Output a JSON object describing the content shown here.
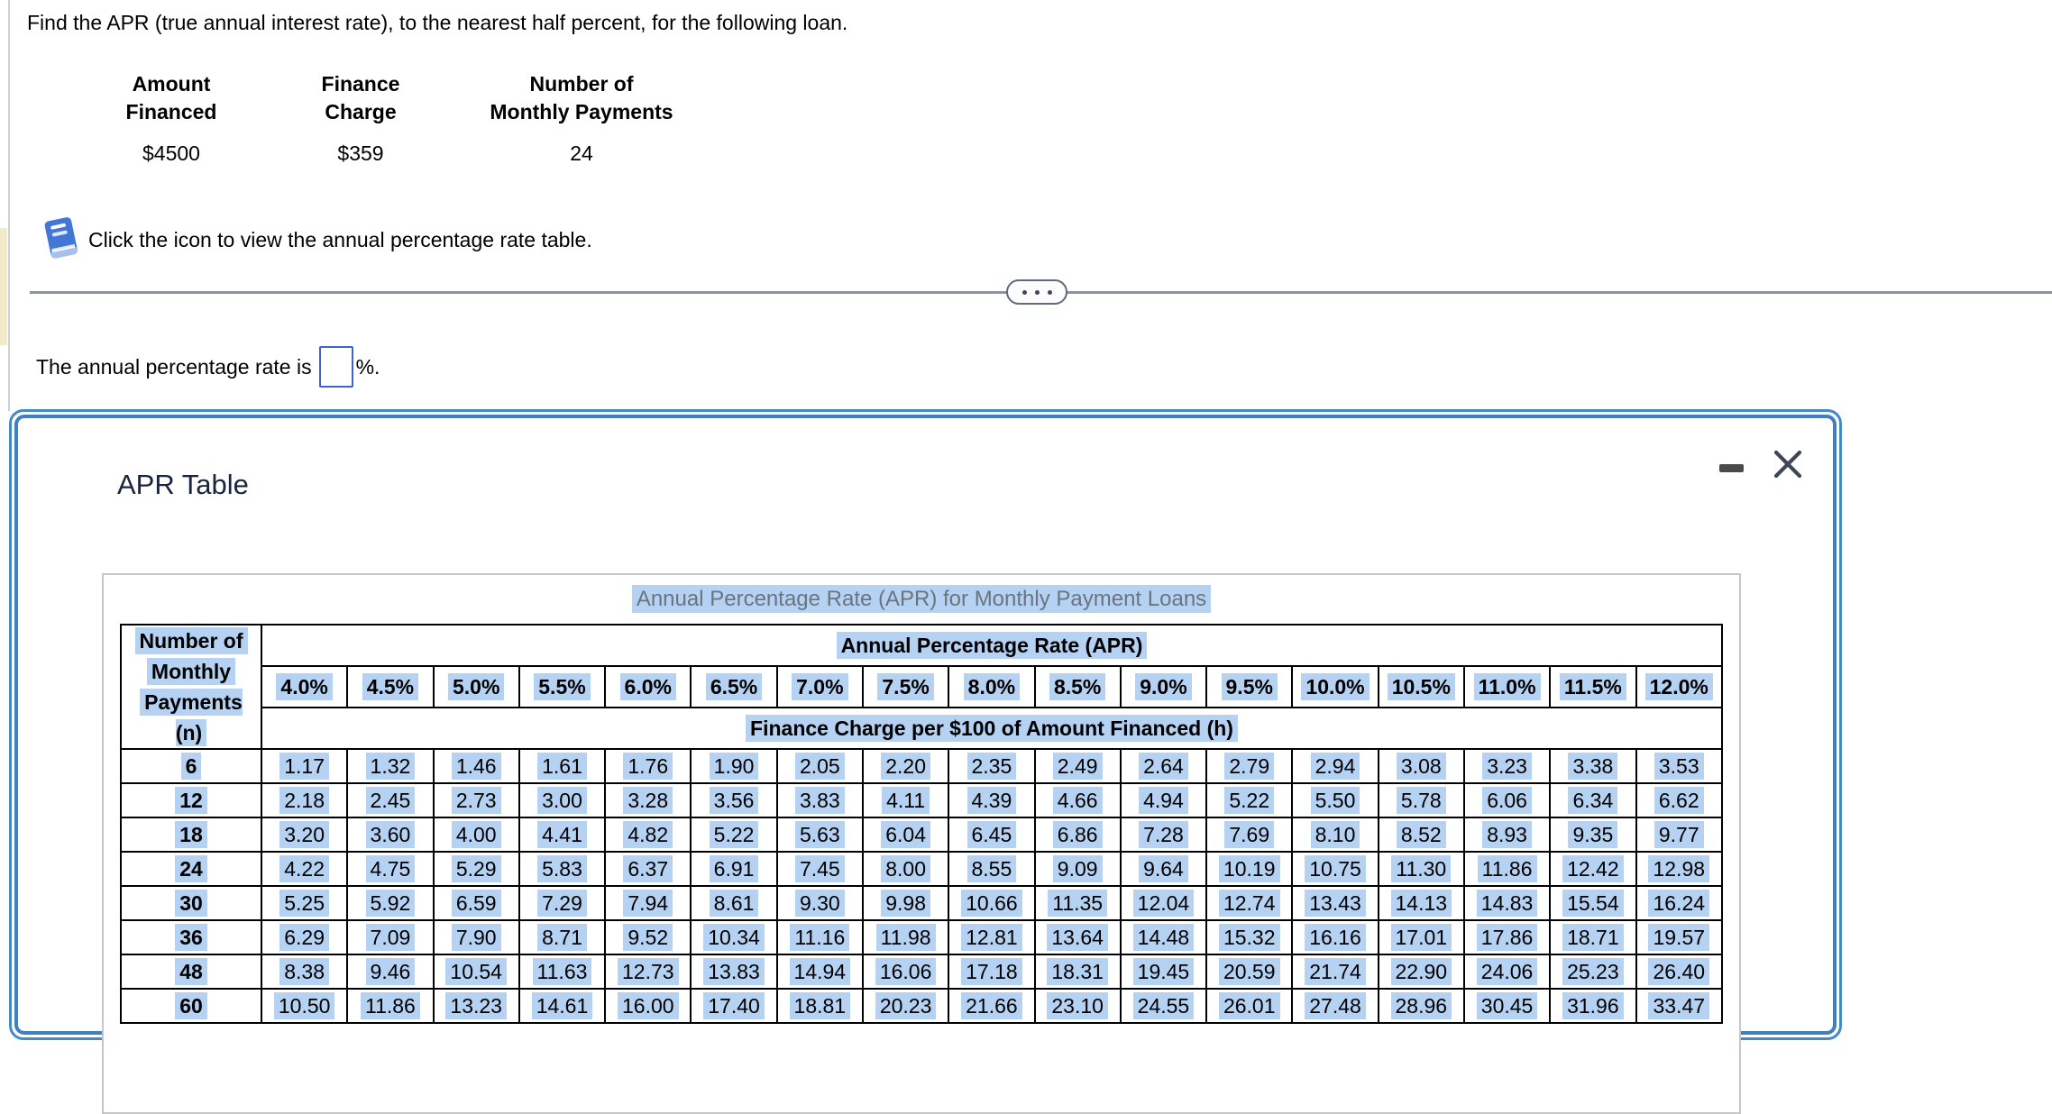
{
  "page": {
    "question_prompt": "Find the APR (true annual interest rate), to the nearest half percent, for the following loan.",
    "loan_table": {
      "columns": [
        {
          "header": [
            "Amount",
            "Financed"
          ],
          "value": "$4500"
        },
        {
          "header": [
            "Finance",
            "Charge"
          ],
          "value": "$359"
        },
        {
          "header": [
            "Number of",
            "Monthly Payments"
          ],
          "value": "24"
        }
      ]
    },
    "icon_hint": "Click the icon to view the annual percentage rate table.",
    "answer_line": {
      "prefix": "The annual percentage rate is",
      "input_value": "",
      "suffix": "%."
    }
  },
  "icons": {
    "view_table": "book-icon",
    "divider_expand": "ellipsis-icon",
    "minimize": "minus-icon",
    "close": "x-icon"
  },
  "colors": {
    "highlight_blue": "#b5d2f3",
    "modal_border_blue": "#4285c6",
    "book_icon_blue": "#4277d8",
    "input_border_blue": "#3d63c6",
    "divider_gray": "#8a93a4",
    "caption_text_gray": "#6a7480",
    "title_navy": "#182540"
  },
  "modal": {
    "title": "APR Table"
  },
  "apr_table": {
    "caption": "Annual Percentage Rate (APR) for Monthly Payment Loans",
    "row_header_lines": [
      "Number of",
      "Monthly",
      "Payments (n)"
    ],
    "group_header": "Annual Percentage Rate (APR)",
    "subgroup_header": "Finance Charge per $100 of Amount Financed (h)",
    "rate_columns": [
      "4.0%",
      "4.5%",
      "5.0%",
      "5.5%",
      "6.0%",
      "6.5%",
      "7.0%",
      "7.5%",
      "8.0%",
      "8.5%",
      "9.0%",
      "9.5%",
      "10.0%",
      "10.5%",
      "11.0%",
      "11.5%",
      "12.0%"
    ],
    "rows": [
      {
        "n": "6",
        "values": [
          "1.17",
          "1.32",
          "1.46",
          "1.61",
          "1.76",
          "1.90",
          "2.05",
          "2.20",
          "2.35",
          "2.49",
          "2.64",
          "2.79",
          "2.94",
          "3.08",
          "3.23",
          "3.38",
          "3.53"
        ]
      },
      {
        "n": "12",
        "values": [
          "2.18",
          "2.45",
          "2.73",
          "3.00",
          "3.28",
          "3.56",
          "3.83",
          "4.11",
          "4.39",
          "4.66",
          "4.94",
          "5.22",
          "5.50",
          "5.78",
          "6.06",
          "6.34",
          "6.62"
        ]
      },
      {
        "n": "18",
        "values": [
          "3.20",
          "3.60",
          "4.00",
          "4.41",
          "4.82",
          "5.22",
          "5.63",
          "6.04",
          "6.45",
          "6.86",
          "7.28",
          "7.69",
          "8.10",
          "8.52",
          "8.93",
          "9.35",
          "9.77"
        ]
      },
      {
        "n": "24",
        "values": [
          "4.22",
          "4.75",
          "5.29",
          "5.83",
          "6.37",
          "6.91",
          "7.45",
          "8.00",
          "8.55",
          "9.09",
          "9.64",
          "10.19",
          "10.75",
          "11.30",
          "11.86",
          "12.42",
          "12.98"
        ]
      },
      {
        "n": "30",
        "values": [
          "5.25",
          "5.92",
          "6.59",
          "7.29",
          "7.94",
          "8.61",
          "9.30",
          "9.98",
          "10.66",
          "11.35",
          "12.04",
          "12.74",
          "13.43",
          "14.13",
          "14.83",
          "15.54",
          "16.24"
        ]
      },
      {
        "n": "36",
        "values": [
          "6.29",
          "7.09",
          "7.90",
          "8.71",
          "9.52",
          "10.34",
          "11.16",
          "11.98",
          "12.81",
          "13.64",
          "14.48",
          "15.32",
          "16.16",
          "17.01",
          "17.86",
          "18.71",
          "19.57"
        ]
      },
      {
        "n": "48",
        "values": [
          "8.38",
          "9.46",
          "10.54",
          "11.63",
          "12.73",
          "13.83",
          "14.94",
          "16.06",
          "17.18",
          "18.31",
          "19.45",
          "20.59",
          "21.74",
          "22.90",
          "24.06",
          "25.23",
          "26.40"
        ]
      },
      {
        "n": "60",
        "values": [
          "10.50",
          "11.86",
          "13.23",
          "14.61",
          "16.00",
          "17.40",
          "18.81",
          "20.23",
          "21.66",
          "23.10",
          "24.55",
          "26.01",
          "27.48",
          "28.96",
          "30.45",
          "31.96",
          "33.47"
        ]
      }
    ]
  }
}
